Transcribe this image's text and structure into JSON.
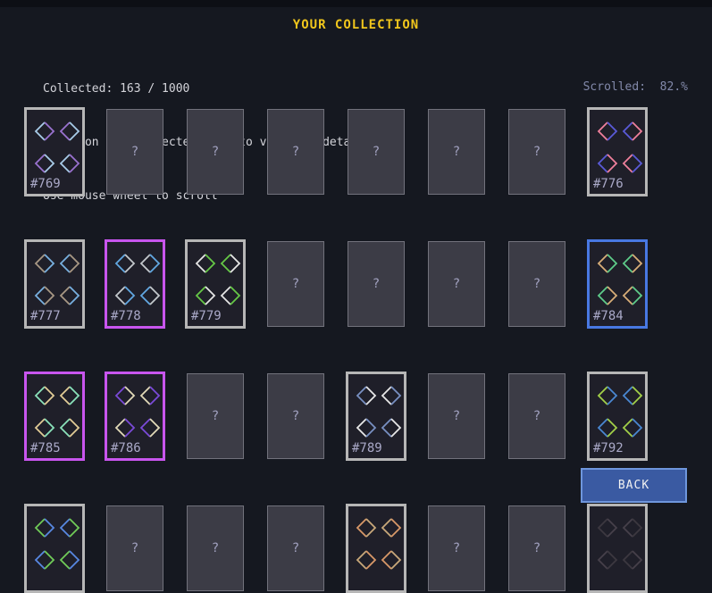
{
  "header": {
    "title": "YOUR COLLECTION"
  },
  "info": {
    "collected": "Collected: 163 / 1000",
    "hint_click": "Click on any collected card to view its details",
    "hint_scroll": "Use mouse wheel to scroll",
    "scrolled": "Scrolled:  82.%"
  },
  "colors": {
    "background": "#151820",
    "title": "#f0c61c",
    "text": "#d4d4da",
    "muted": "#8289aa",
    "card_bg": "#1f1f29",
    "unknown_bg": "#3c3c46",
    "unknown_border": "#72727c",
    "question_mark": "#a2a2c0",
    "label": "#aaa9c8",
    "border": {
      "gray": "#b6b6b6",
      "magenta": "#c855ee",
      "blue": "#4878e2"
    },
    "button_bg": "#3a5aa2",
    "button_border": "#6e96dc",
    "button_text": "#f2f2f2"
  },
  "grid": {
    "columns": 8,
    "unknown_glyph": "?",
    "cards": [
      {
        "state": "revealed",
        "label": "#769",
        "border": "gray",
        "colors": [
          "#a8cce8",
          "#9a72d0"
        ]
      },
      {
        "state": "unknown"
      },
      {
        "state": "unknown"
      },
      {
        "state": "unknown"
      },
      {
        "state": "unknown"
      },
      {
        "state": "unknown"
      },
      {
        "state": "unknown"
      },
      {
        "state": "revealed",
        "label": "#776",
        "border": "gray",
        "colors": [
          "#f0809c",
          "#5a5ad8"
        ]
      },
      {
        "state": "revealed",
        "label": "#777",
        "border": "gray",
        "colors": [
          "#a89884",
          "#78b0e0"
        ]
      },
      {
        "state": "revealed",
        "label": "#778",
        "border": "magenta",
        "colors": [
          "#62a8e2",
          "#c4c8cc"
        ]
      },
      {
        "state": "revealed",
        "label": "#779",
        "border": "gray",
        "colors": [
          "#e6e6e6",
          "#66c846"
        ]
      },
      {
        "state": "unknown"
      },
      {
        "state": "unknown"
      },
      {
        "state": "unknown"
      },
      {
        "state": "unknown"
      },
      {
        "state": "revealed",
        "label": "#784",
        "border": "blue",
        "colors": [
          "#d8ae78",
          "#5ecc8a"
        ]
      },
      {
        "state": "revealed",
        "label": "#785",
        "border": "magenta",
        "colors": [
          "#8ae2ba",
          "#e2cc96"
        ]
      },
      {
        "state": "revealed",
        "label": "#786",
        "border": "magenta",
        "colors": [
          "#7a4ad8",
          "#e2dab8"
        ]
      },
      {
        "state": "unknown"
      },
      {
        "state": "unknown"
      },
      {
        "state": "revealed",
        "label": "#789",
        "border": "gray",
        "colors": [
          "#7890c2",
          "#e8e8e8"
        ]
      },
      {
        "state": "unknown"
      },
      {
        "state": "unknown"
      },
      {
        "state": "revealed",
        "label": "#792",
        "border": "gray",
        "colors": [
          "#a2d048",
          "#4a88d2"
        ]
      },
      {
        "state": "revealed",
        "label": "",
        "border": "gray",
        "colors": [
          "#70cc58",
          "#5888e2"
        ]
      },
      {
        "state": "unknown"
      },
      {
        "state": "unknown"
      },
      {
        "state": "unknown"
      },
      {
        "state": "revealed",
        "label": "",
        "border": "gray",
        "colors": [
          "#d89868",
          "#c8a87a"
        ]
      },
      {
        "state": "unknown"
      },
      {
        "state": "unknown"
      },
      {
        "state": "revealed",
        "label": "",
        "border": "gray",
        "colors": [
          "#3c3840",
          "#46404a"
        ]
      }
    ]
  },
  "back_button": {
    "label": "BACK"
  }
}
